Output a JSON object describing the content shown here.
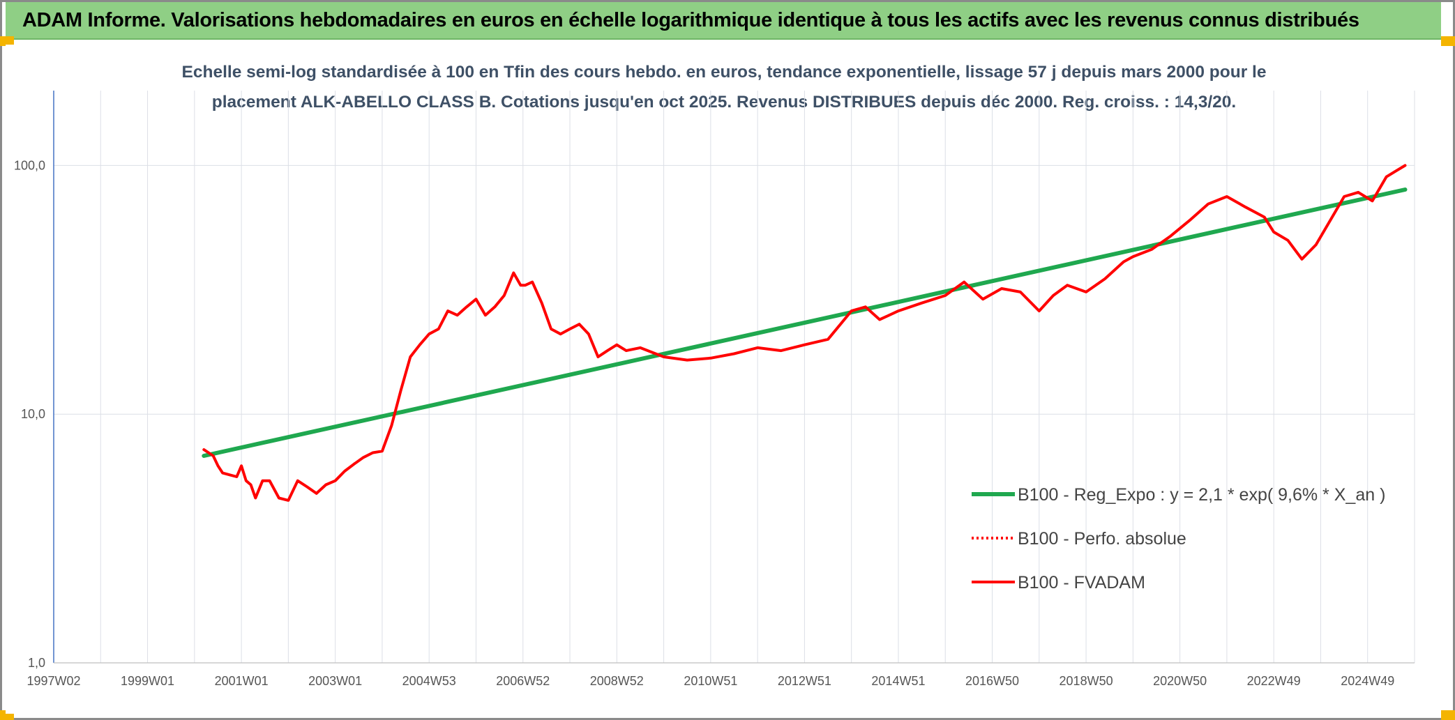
{
  "header": {
    "title": "ADAM Informe. Valorisations hebdomadaires en euros en échelle logarithmique identique à tous les actifs avec les revenus connus distribués"
  },
  "chart_data": {
    "type": "line",
    "title_line1": "Echelle semi-log standardisée à 100 en Tfin des cours hebdo. en euros, tendance exponentielle, lissage 57 j depuis mars 2000 pour le",
    "title_line2": "placement ALK-ABELLO CLASS B. Cotations jusqu'en oct 2025. Revenus DISTRIBUES depuis déc 2000. Reg. croiss. : 14,3/20.",
    "yscale": "log",
    "ylim": [
      1,
      200
    ],
    "y_ticks": [
      {
        "value": 1,
        "label": "1,0"
      },
      {
        "value": 10,
        "label": "10,0"
      },
      {
        "value": 100,
        "label": "100,0"
      }
    ],
    "xlim": [
      1997.0,
      2026.0
    ],
    "x_ticks": [
      {
        "value": 1997.0,
        "label": "1997W02"
      },
      {
        "value": 1999.0,
        "label": "1999W01"
      },
      {
        "value": 2001.0,
        "label": "2001W01"
      },
      {
        "value": 2003.0,
        "label": "2003W01"
      },
      {
        "value": 2005.0,
        "label": "2004W53"
      },
      {
        "value": 2007.0,
        "label": "2006W52"
      },
      {
        "value": 2009.0,
        "label": "2008W52"
      },
      {
        "value": 2011.0,
        "label": "2010W51"
      },
      {
        "value": 2013.0,
        "label": "2012W51"
      },
      {
        "value": 2015.0,
        "label": "2014W51"
      },
      {
        "value": 2017.0,
        "label": "2016W50"
      },
      {
        "value": 2019.0,
        "label": "2018W50"
      },
      {
        "value": 2021.0,
        "label": "2020W50"
      },
      {
        "value": 2023.0,
        "label": "2022W49"
      },
      {
        "value": 2025.0,
        "label": "2024W49"
      }
    ],
    "legend_position": "right",
    "series": [
      {
        "name": "B100 - Reg_Expo : y = 2,1 * exp( 9,6% *  X_an )",
        "color": "#1fa84f",
        "style": "solid",
        "x": [
          2000.2,
          2025.8
        ],
        "y": [
          6.8,
          80
        ]
      },
      {
        "name": "B100 - Perfo. absolue",
        "color": "#ff0000",
        "style": "dotted",
        "x": [],
        "y": []
      },
      {
        "name": "B100 - FVADAM",
        "color": "#ff0000",
        "style": "solid",
        "x": [
          2000.2,
          2000.3,
          2000.4,
          2000.5,
          2000.6,
          2000.75,
          2000.9,
          2001.0,
          2001.1,
          2001.2,
          2001.3,
          2001.45,
          2001.6,
          2001.8,
          2002.0,
          2002.2,
          2002.4,
          2002.6,
          2002.8,
          2003.0,
          2003.2,
          2003.4,
          2003.6,
          2003.8,
          2004.0,
          2004.2,
          2004.4,
          2004.6,
          2004.8,
          2005.0,
          2005.2,
          2005.4,
          2005.6,
          2005.8,
          2006.0,
          2006.2,
          2006.4,
          2006.6,
          2006.8,
          2006.95,
          2007.05,
          2007.2,
          2007.4,
          2007.6,
          2007.8,
          2008.0,
          2008.2,
          2008.4,
          2008.6,
          2008.8,
          2009.0,
          2009.2,
          2009.5,
          2010.0,
          2010.5,
          2011.0,
          2011.5,
          2012.0,
          2012.5,
          2013.0,
          2013.5,
          2014.0,
          2014.3,
          2014.6,
          2015.0,
          2015.5,
          2016.0,
          2016.4,
          2016.8,
          2017.2,
          2017.6,
          2018.0,
          2018.3,
          2018.6,
          2019.0,
          2019.4,
          2019.8,
          2020.0,
          2020.4,
          2020.8,
          2021.2,
          2021.6,
          2022.0,
          2022.4,
          2022.8,
          2023.0,
          2023.3,
          2023.6,
          2023.9,
          2024.2,
          2024.5,
          2024.8,
          2025.1,
          2025.4,
          2025.6,
          2025.8
        ],
        "y": [
          7.2,
          7.0,
          6.8,
          6.2,
          5.8,
          5.7,
          5.6,
          6.2,
          5.4,
          5.2,
          4.6,
          5.4,
          5.4,
          4.6,
          4.5,
          5.4,
          5.1,
          4.8,
          5.2,
          5.4,
          5.9,
          6.3,
          6.7,
          7.0,
          7.1,
          9.0,
          12.5,
          17,
          19,
          21,
          22,
          26,
          25,
          27,
          29,
          25,
          27,
          30,
          37,
          33,
          33,
          34,
          28,
          22,
          21,
          22,
          23,
          21,
          17,
          18,
          19,
          18,
          18.5,
          17,
          16.5,
          16.8,
          17.5,
          18.5,
          18,
          19,
          20,
          26,
          27,
          24,
          26,
          28,
          30,
          34,
          29,
          32,
          31,
          26,
          30,
          33,
          31,
          35,
          41,
          43,
          46,
          52,
          60,
          70,
          75,
          68,
          62,
          54,
          50,
          42,
          48,
          60,
          75,
          78,
          72,
          90,
          95,
          100
        ]
      }
    ]
  }
}
